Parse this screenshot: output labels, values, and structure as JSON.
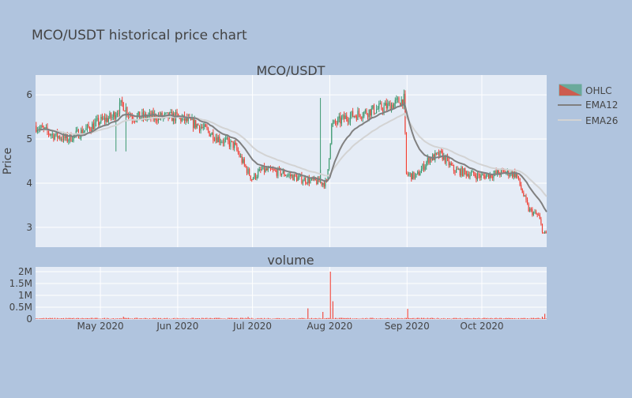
{
  "title": "MCO/USDT historical price chart",
  "colors": {
    "background": "#b0c4de",
    "plot_bg": "#e5ecf6",
    "increasing": "#3d9970",
    "decreasing": "#ef4136",
    "ema12": "#808080",
    "ema26": "#d3d3d3"
  },
  "chart_data": [
    {
      "type": "candlestick",
      "title": "MCO/USDT",
      "ylabel": "Price",
      "xlabel": "",
      "ylim": [
        2.55,
        6.45
      ],
      "y_ticks": [
        3,
        4,
        5,
        6
      ],
      "x_range": [
        "2020-04-05",
        "2020-10-27"
      ],
      "x_ticks": [
        "2020-05-01",
        "2020-06-01",
        "2020-07-01",
        "2020-08-01",
        "2020-09-01",
        "2020-10-01"
      ],
      "x_tick_labels": [
        "May 2020",
        "Jun 2020",
        "Jul 2020",
        "Aug 2020",
        "Sep 2020",
        "Oct 2020"
      ],
      "grid": true,
      "legend_position": "top-right",
      "interval": "12h",
      "close_anchors": [
        [
          "2020-04-05",
          5.3
        ],
        [
          "2020-04-12",
          5.1
        ],
        [
          "2020-04-18",
          5.0
        ],
        [
          "2020-04-25",
          5.2
        ],
        [
          "2020-05-01",
          5.4
        ],
        [
          "2020-05-06",
          5.5
        ],
        [
          "2020-05-10",
          5.8
        ],
        [
          "2020-05-14",
          5.5
        ],
        [
          "2020-05-20",
          5.5
        ],
        [
          "2020-06-01",
          5.5
        ],
        [
          "2020-06-10",
          5.3
        ],
        [
          "2020-06-18",
          5.0
        ],
        [
          "2020-06-24",
          4.85
        ],
        [
          "2020-06-28",
          4.4
        ],
        [
          "2020-07-01",
          4.1
        ],
        [
          "2020-07-05",
          4.3
        ],
        [
          "2020-07-12",
          4.25
        ],
        [
          "2020-07-20",
          4.1
        ],
        [
          "2020-07-31",
          4.0
        ],
        [
          "2020-08-02",
          5.3
        ],
        [
          "2020-08-08",
          5.5
        ],
        [
          "2020-08-15",
          5.6
        ],
        [
          "2020-08-25",
          5.75
        ],
        [
          "2020-08-31",
          5.9
        ],
        [
          "2020-09-01",
          4.2
        ],
        [
          "2020-09-05",
          4.15
        ],
        [
          "2020-09-10",
          4.55
        ],
        [
          "2020-09-15",
          4.65
        ],
        [
          "2020-09-20",
          4.3
        ],
        [
          "2020-10-01",
          4.15
        ],
        [
          "2020-10-10",
          4.25
        ],
        [
          "2020-10-15",
          4.2
        ],
        [
          "2020-10-20",
          3.4
        ],
        [
          "2020-10-24",
          3.25
        ],
        [
          "2020-10-26",
          2.85
        ]
      ],
      "spikes": [
        {
          "x": "2020-07-28",
          "high": 5.93,
          "type": "up"
        },
        {
          "x": "2020-05-11",
          "low": 4.72,
          "type": "down"
        },
        {
          "x": "2020-05-07",
          "low": 4.72,
          "type": "down"
        }
      ],
      "series": [
        {
          "name": "OHLC",
          "type": "candlestick"
        },
        {
          "name": "EMA12",
          "type": "line",
          "color": "#808080"
        },
        {
          "name": "EMA26",
          "type": "line",
          "color": "#d3d3d3"
        }
      ]
    },
    {
      "type": "bar",
      "title": "volume",
      "ylim": [
        0,
        2200000
      ],
      "y_ticks": [
        0,
        500000,
        1000000,
        1500000,
        2000000
      ],
      "y_tick_labels": [
        "0",
        "0.5M",
        "1M",
        "1.5M",
        "2M"
      ],
      "base_volume": 30000,
      "spikes": [
        {
          "x": "2020-08-01",
          "value": 2000000
        },
        {
          "x": "2020-08-02",
          "value": 750000
        },
        {
          "x": "2020-07-23",
          "value": 450000
        },
        {
          "x": "2020-07-29",
          "value": 300000
        },
        {
          "x": "2020-09-01",
          "value": 430000
        },
        {
          "x": "2020-10-26",
          "value": 220000
        },
        {
          "x": "2020-10-25",
          "value": 100000
        },
        {
          "x": "2020-05-10",
          "value": 100000
        },
        {
          "x": "2020-06-29",
          "value": 90000
        }
      ]
    }
  ]
}
